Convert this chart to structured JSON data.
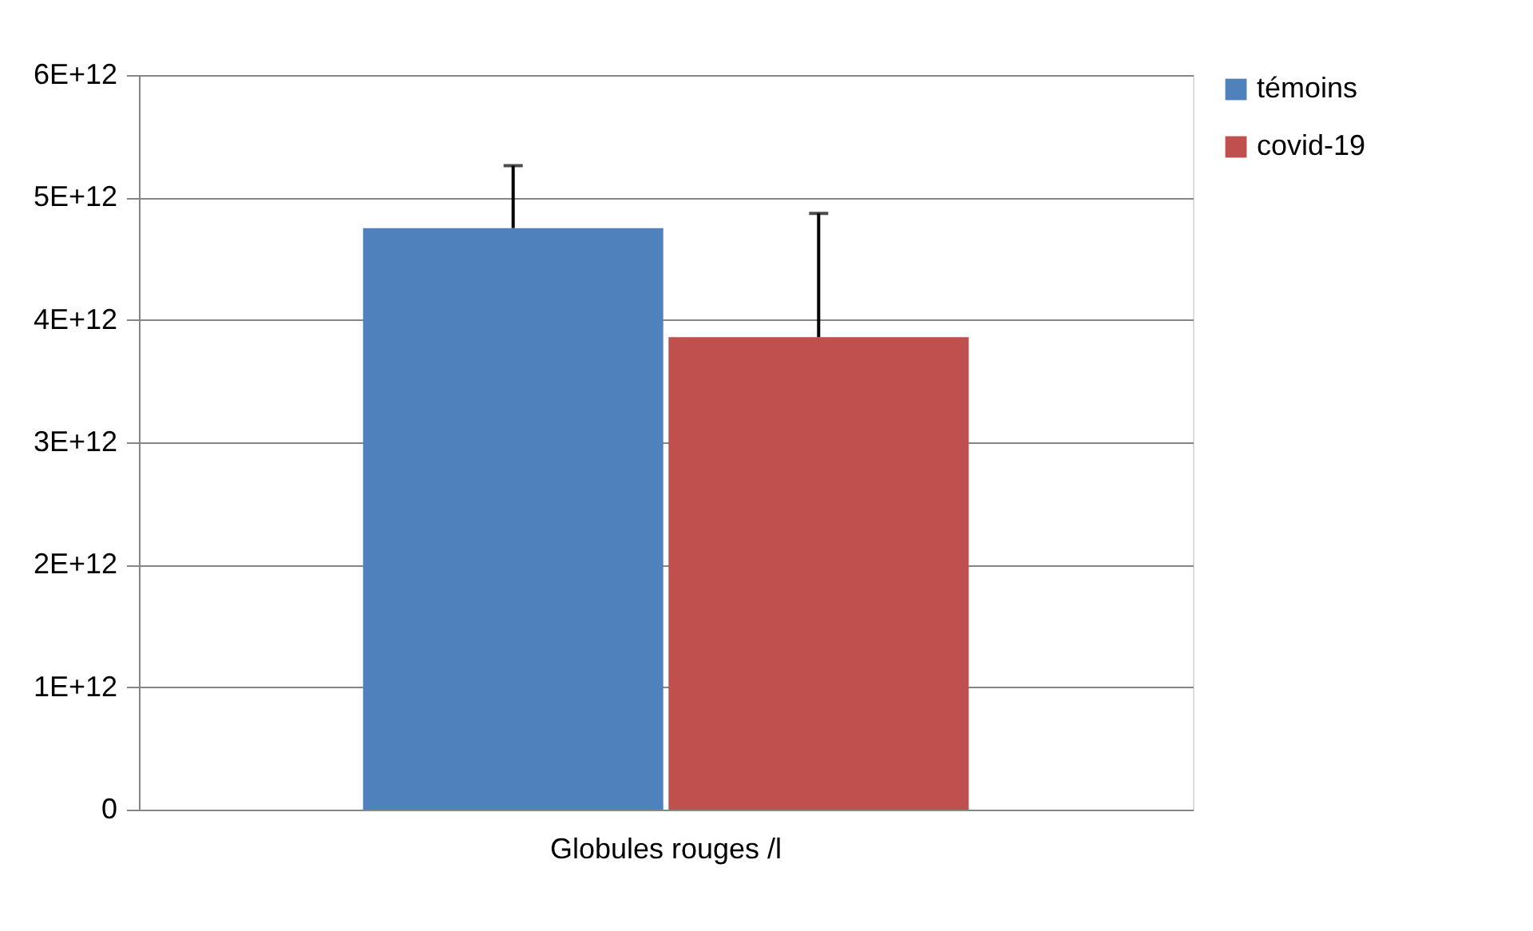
{
  "chart_data": {
    "type": "bar",
    "categories": [
      "Globules rouges /l"
    ],
    "series": [
      {
        "name": "témoins",
        "color": "#4f81bd",
        "values": [
          4750000000000.0
        ],
        "errors": [
          [
            4750000000000.0,
            5260000000000.0
          ]
        ]
      },
      {
        "name": "covid-19",
        "color": "#c0504d",
        "values": [
          3860000000000.0
        ],
        "errors": [
          [
            3860000000000.0,
            4870000000000.0
          ]
        ]
      }
    ],
    "ylim": [
      0,
      6000000000000.0
    ],
    "yticks": [
      {
        "value": 0,
        "label": "0"
      },
      {
        "value": 1000000000000.0,
        "label": "1E+12"
      },
      {
        "value": 2000000000000.0,
        "label": "2E+12"
      },
      {
        "value": 3000000000000.0,
        "label": "3E+12"
      },
      {
        "value": 4000000000000.0,
        "label": "4E+12"
      },
      {
        "value": 5000000000000.0,
        "label": "5E+12"
      },
      {
        "value": 6000000000000.0,
        "label": "6E+12"
      }
    ],
    "grid": "y",
    "legend": "right"
  }
}
